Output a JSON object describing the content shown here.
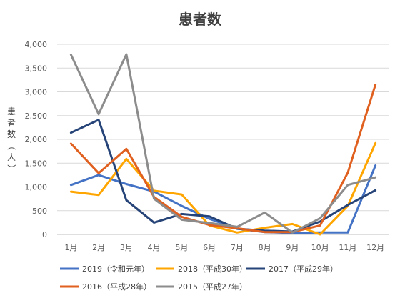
{
  "chart_data": {
    "type": "line",
    "title": "患者数",
    "ylabel": "患者数（人）",
    "xlabel": "",
    "categories": [
      "1月",
      "2月",
      "3月",
      "4月",
      "5月",
      "6月",
      "7月",
      "8月",
      "9月",
      "10月",
      "11月",
      "12月"
    ],
    "ylim": [
      0,
      4000
    ],
    "yticks": [
      "0",
      "500",
      "1,000",
      "1,500",
      "2,000",
      "2,500",
      "3,000",
      "3,500",
      "4,000"
    ],
    "grid": true,
    "legend_position": "bottom",
    "series": [
      {
        "name": "2019（令和元年）",
        "color": "#4472C4",
        "values": [
          1040,
          1250,
          1060,
          900,
          600,
          330,
          120,
          50,
          30,
          40,
          40,
          1450
        ]
      },
      {
        "name": "2018（平成30年）",
        "color": "#FFA500",
        "values": [
          900,
          830,
          1590,
          920,
          840,
          190,
          40,
          140,
          220,
          0,
          600,
          1920
        ]
      },
      {
        "name": "2017（平成29年）",
        "color": "#264478",
        "values": [
          2140,
          2410,
          720,
          250,
          430,
          380,
          120,
          80,
          60,
          270,
          620,
          930
        ]
      },
      {
        "name": "2016（平成28年）",
        "color": "#E06020",
        "values": [
          1910,
          1290,
          1800,
          790,
          370,
          200,
          130,
          50,
          50,
          190,
          1300,
          3150
        ]
      },
      {
        "name": "2015（平成27年）",
        "color": "#8C8C8C",
        "values": [
          3780,
          2530,
          3790,
          750,
          310,
          240,
          160,
          460,
          40,
          340,
          1040,
          1200
        ]
      }
    ]
  }
}
